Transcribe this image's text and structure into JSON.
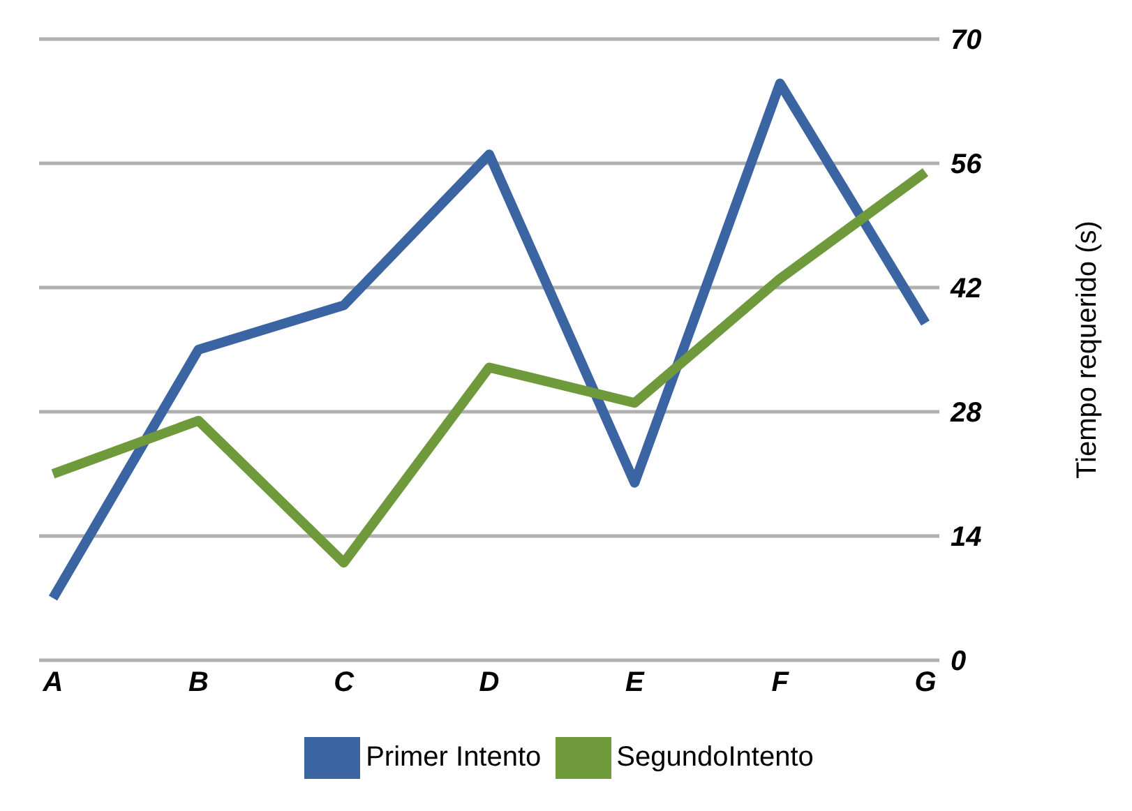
{
  "chart_data": {
    "type": "line",
    "categories": [
      "A",
      "B",
      "C",
      "D",
      "E",
      "F",
      "G"
    ],
    "series": [
      {
        "name": "Primer Intento",
        "color": "#3a64a2",
        "values": [
          7,
          35,
          40,
          57,
          20,
          65,
          38
        ]
      },
      {
        "name": "SegundoIntento",
        "color": "#6f9a3c",
        "values": [
          21,
          27,
          11,
          33,
          29,
          43,
          55
        ]
      }
    ],
    "ylabel": "Tiempo requerido (s)",
    "ylim": [
      0,
      70
    ],
    "yticks": [
      0,
      14,
      28,
      42,
      56,
      70
    ],
    "grid": "y",
    "legend": "bottom",
    "marker": "none",
    "line_style": "solid"
  }
}
